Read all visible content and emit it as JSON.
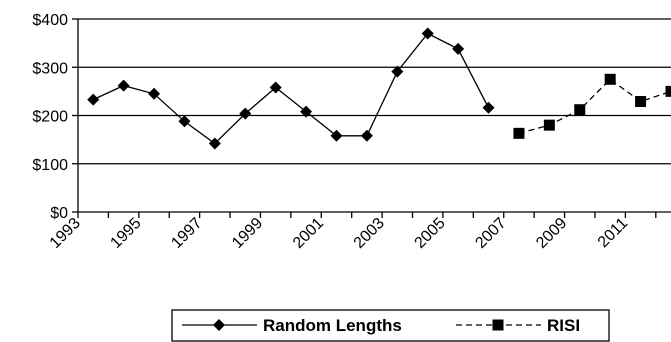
{
  "chart_data": {
    "type": "line",
    "x_tick_labels": [
      "1993",
      "1995",
      "1997",
      "1999",
      "2001",
      "2003",
      "2005",
      "2007",
      "2009",
      "2011"
    ],
    "y_tick_labels": [
      "$0",
      "$100",
      "$200",
      "$300",
      "$400"
    ],
    "ylim": [
      0,
      400
    ],
    "xlim": [
      1993,
      2012.5
    ],
    "grid": "horizontal",
    "legend_position": "bottom",
    "series": [
      {
        "name": "Random Lengths",
        "style": "solid",
        "marker": "diamond",
        "color": "#000000",
        "x": [
          1993.5,
          1994.5,
          1995.5,
          1996.5,
          1997.5,
          1998.5,
          1999.5,
          2000.5,
          2001.5,
          2002.5,
          2003.5,
          2004.5,
          2005.5,
          2006.5
        ],
        "values": [
          233,
          262,
          245,
          188,
          142,
          204,
          258,
          208,
          158,
          158,
          291,
          370,
          338,
          216
        ]
      },
      {
        "name": "RISI",
        "style": "dashed",
        "marker": "square",
        "color": "#000000",
        "x": [
          2007.5,
          2008.5,
          2009.5,
          2010.5,
          2011.5,
          2012.5
        ],
        "values": [
          163,
          180,
          212,
          275,
          229,
          250
        ]
      }
    ]
  }
}
